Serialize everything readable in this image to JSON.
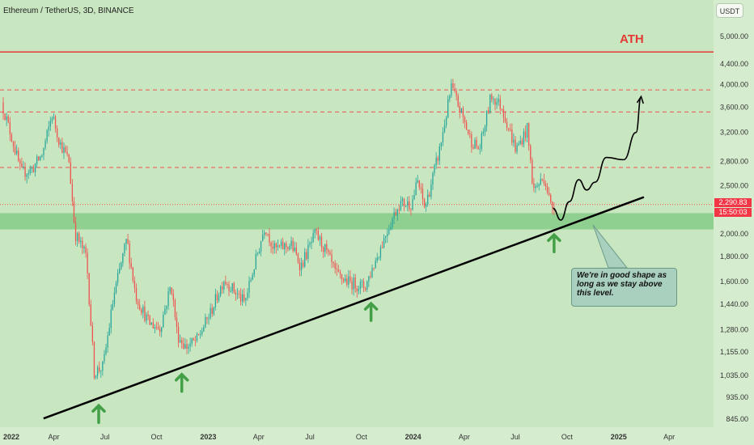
{
  "header": {
    "title": "Ethereum / TetherUS, 3D, BINANCE",
    "currency": "USDT"
  },
  "annotations": {
    "ath": "ATH",
    "note": "We're in good shape as long as we stay above this level.",
    "last_price": "2,290.83",
    "countdown": "15:50:03"
  },
  "colors": {
    "background": "#c8e6c0",
    "up": "#26a69a",
    "down": "#ef5350",
    "ath_line": "#e53935",
    "support_zone": "#8fcf8f",
    "trendline": "#000000",
    "arrow": "#43a047"
  },
  "chart_data": {
    "type": "candlestick",
    "scale": "log",
    "ylim": [
      810,
      5600
    ],
    "y_ticks": [
      "5,000.00",
      "4,400.00",
      "4,000.00",
      "3,600.00",
      "3,200.00",
      "2,800.00",
      "2,500.00",
      "2,000.00",
      "1,800.00",
      "1,600.00",
      "1,440.00",
      "1,280.00",
      "1,155.00",
      "1,035.00",
      "935.00",
      "845.00"
    ],
    "x_ticks": [
      "2022",
      "Apr",
      "Jul",
      "Oct",
      "2023",
      "Apr",
      "Jul",
      "Oct",
      "2024",
      "Apr",
      "Jul",
      "Oct",
      "2025",
      "Apr"
    ],
    "x_range": [
      "2022-01-01",
      "2025-05-01"
    ],
    "price_path": [
      [
        "2022-01-01",
        3680
      ],
      [
        "2022-01-20",
        3100
      ],
      [
        "2022-02-05",
        2650
      ],
      [
        "2022-02-25",
        2700
      ],
      [
        "2022-03-15",
        2900
      ],
      [
        "2022-04-01",
        3480
      ],
      [
        "2022-04-15",
        3050
      ],
      [
        "2022-05-01",
        2800
      ],
      [
        "2022-05-12",
        2000
      ],
      [
        "2022-06-01",
        1800
      ],
      [
        "2022-06-15",
        1050
      ],
      [
        "2022-07-01",
        1080
      ],
      [
        "2022-07-20",
        1500
      ],
      [
        "2022-08-12",
        1950
      ],
      [
        "2022-08-28",
        1500
      ],
      [
        "2022-09-20",
        1320
      ],
      [
        "2022-10-10",
        1290
      ],
      [
        "2022-10-30",
        1580
      ],
      [
        "2022-11-10",
        1250
      ],
      [
        "2022-11-25",
        1180
      ],
      [
        "2022-12-15",
        1220
      ],
      [
        "2023-01-10",
        1400
      ],
      [
        "2023-02-01",
        1620
      ],
      [
        "2023-03-10",
        1450
      ],
      [
        "2023-04-15",
        2080
      ],
      [
        "2023-05-01",
        1860
      ],
      [
        "2023-06-01",
        1900
      ],
      [
        "2023-06-18",
        1720
      ],
      [
        "2023-07-14",
        2000
      ],
      [
        "2023-08-01",
        1850
      ],
      [
        "2023-08-20",
        1650
      ],
      [
        "2023-09-10",
        1600
      ],
      [
        "2023-10-10",
        1560
      ],
      [
        "2023-11-01",
        1800
      ],
      [
        "2023-11-20",
        2050
      ],
      [
        "2023-12-10",
        2300
      ],
      [
        "2024-01-01",
        2300
      ],
      [
        "2024-01-12",
        2550
      ],
      [
        "2024-01-25",
        2250
      ],
      [
        "2024-02-20",
        2950
      ],
      [
        "2024-03-12",
        3950
      ],
      [
        "2024-04-01",
        3450
      ],
      [
        "2024-04-15",
        3100
      ],
      [
        "2024-05-01",
        2950
      ],
      [
        "2024-05-22",
        3800
      ],
      [
        "2024-06-10",
        3600
      ],
      [
        "2024-07-05",
        2950
      ],
      [
        "2024-07-25",
        3250
      ],
      [
        "2024-08-05",
        2450
      ],
      [
        "2024-08-25",
        2600
      ],
      [
        "2024-09-06",
        2250
      ],
      [
        "2024-09-10",
        2290
      ]
    ],
    "levels": {
      "ath": 4650,
      "resistance_dashed": [
        3900,
        3520,
        2720
      ],
      "current_dotted": 2290,
      "support_zone": [
        2040,
        2200
      ]
    },
    "trendline": [
      [
        "2022-06-01",
        900
      ],
      [
        "2025-02-15",
        2370
      ]
    ],
    "support_arrows": [
      "2022-06-20",
      "2022-11-15",
      "2023-10-18",
      "2024-09-08"
    ],
    "projection": [
      [
        "2024-09-06",
        2250
      ],
      [
        "2024-09-20",
        2130
      ],
      [
        "2024-10-05",
        2320
      ],
      [
        "2024-10-22",
        2570
      ],
      [
        "2024-11-05",
        2450
      ],
      [
        "2024-11-20",
        2540
      ],
      [
        "2024-12-10",
        2850
      ],
      [
        "2025-01-10",
        2820
      ],
      [
        "2025-02-01",
        3200
      ],
      [
        "2025-02-10",
        3780
      ]
    ]
  }
}
